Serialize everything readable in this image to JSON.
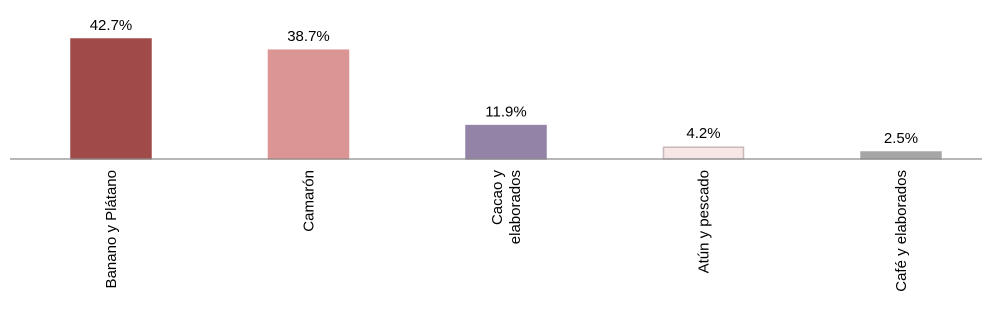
{
  "chart_data": {
    "type": "bar",
    "title": "",
    "xlabel": "",
    "ylabel": "",
    "categories": [
      [
        "Banano y Plátano"
      ],
      [
        "Camarón"
      ],
      [
        "Cacao y",
        "elaborados"
      ],
      [
        "Atún y pescado"
      ],
      [
        "Café y elaborados"
      ]
    ],
    "values": [
      42.7,
      38.7,
      11.9,
      4.2,
      2.5
    ],
    "value_labels": [
      "42.7%",
      "38.7%",
      "11.9%",
      "4.2%",
      "2.5%"
    ],
    "unit": "%",
    "ylim": [
      0,
      42.7
    ],
    "grid": false,
    "legend": "none",
    "colors": [
      "#a04b4a",
      "#da9594",
      "#9283a7",
      "#f6e6e6",
      "#a6a6a6"
    ],
    "stroke_colors": [
      "#a04b4a",
      "#da9594",
      "#9283a7",
      "#c8b8b8",
      "#a6a6a6"
    ],
    "axis_color": "#8c8c8c"
  }
}
